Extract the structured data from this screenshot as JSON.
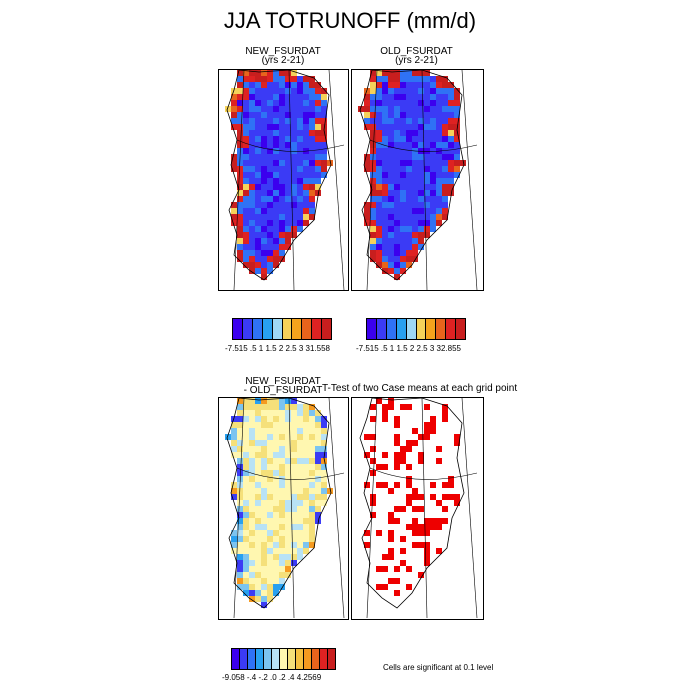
{
  "title": "JJA TOTRUNOFF (mm/d)",
  "panels": {
    "new": {
      "title_line1": "NEW_FSURDAT",
      "title_line2": "(yrs 2-21)"
    },
    "old": {
      "title_line1": "OLD_FSURDAT",
      "title_line2": "(yrs 2-21)"
    },
    "diff": {
      "title_line1": "NEW_FSURDAT",
      "title_line2": "- OLD_FSURDAT"
    },
    "ttest": {
      "title": "T-Test of two Case means at each grid point"
    }
  },
  "colorbars": {
    "new": {
      "colors": [
        "#3b00ee",
        "#3b3bf5",
        "#2f72f5",
        "#28a0f0",
        "#9ed8f5",
        "#f5d25a",
        "#f5a31d",
        "#e8641c",
        "#de2222",
        "#c81e1e"
      ],
      "ticks": "-7.515  .5  1 1.5 2 2.5 3   31.558"
    },
    "old": {
      "colors": [
        "#3b00ee",
        "#3b3bf5",
        "#2f72f5",
        "#28a0f0",
        "#9ed8f5",
        "#f5d25a",
        "#f5a31d",
        "#e8641c",
        "#de2222",
        "#c81e1e"
      ],
      "ticks": "-7.515  .5  1 1.5 2 2.5 3   32.855"
    },
    "diff": {
      "colors": [
        "#3b00ee",
        "#3b3bf5",
        "#2f72f5",
        "#28a0f0",
        "#7cc4f0",
        "#b8e2f5",
        "#fff7b0",
        "#f5e07a",
        "#f5c040",
        "#f59a20",
        "#e8641c",
        "#de2222",
        "#c81e1e"
      ],
      "ticks": "-9.058  -.4  -.2  .0  .2  .4  4.2569"
    }
  },
  "note": "Cells are significant at 0.1 level",
  "chart_data": [
    {
      "type": "heatmap",
      "title": "NEW_FSURDAT",
      "subtitle": "(yrs 2-21)",
      "variable": "JJA TOTRUNOFF (mm/d)",
      "color_levels": [
        0.5,
        1,
        1.5,
        2,
        2.5,
        3
      ],
      "min": -7.515,
      "max": 31.558
    },
    {
      "type": "heatmap",
      "title": "OLD_FSURDAT",
      "subtitle": "(yrs 2-21)",
      "variable": "JJA TOTRUNOFF (mm/d)",
      "color_levels": [
        0.5,
        1,
        1.5,
        2,
        2.5,
        3
      ],
      "min": -7.515,
      "max": 32.855
    },
    {
      "type": "heatmap",
      "title": "NEW_FSURDAT - OLD_FSURDAT",
      "color_levels": [
        -0.4,
        -0.2,
        0.0,
        0.2,
        0.4
      ],
      "min": -9.058,
      "max": 4.2569
    },
    {
      "type": "heatmap",
      "title": "T-Test of two Case means at each grid point",
      "annotation": "Cells are significant at 0.1 level",
      "significance_level": 0.1
    }
  ]
}
